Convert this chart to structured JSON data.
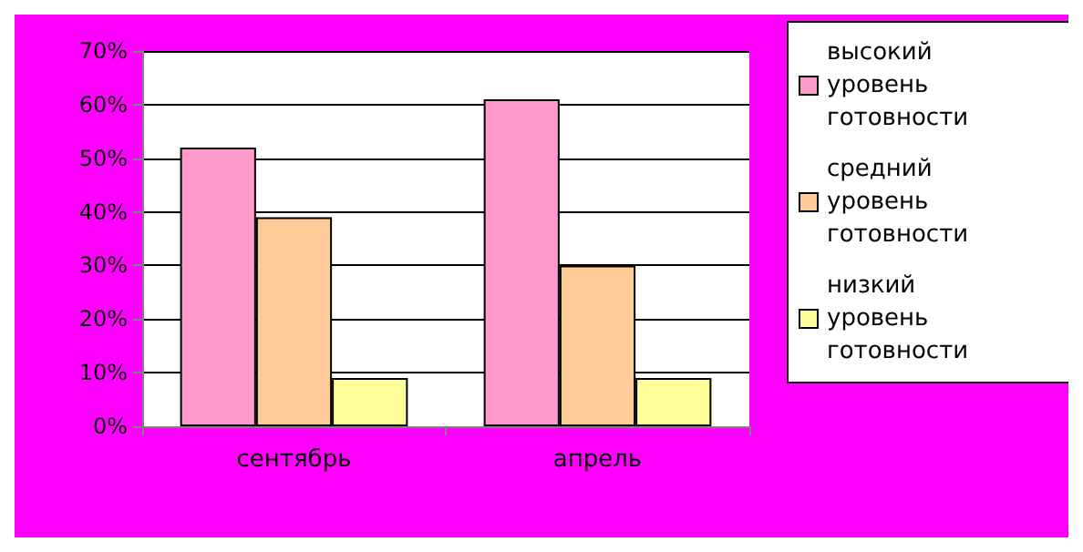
{
  "chart_data": {
    "type": "bar",
    "categories": [
      "сентябрь",
      "апрель"
    ],
    "series": [
      {
        "name": "высокий уровень готовности",
        "color": "#ff99cc",
        "values": [
          52,
          61
        ]
      },
      {
        "name": "средний уровень готовности",
        "color": "#ffcc99",
        "values": [
          39,
          30
        ]
      },
      {
        "name": "низкий уровень готовности",
        "color": "#ffff99",
        "values": [
          9,
          9
        ]
      }
    ],
    "ylim": [
      0,
      70
    ],
    "yticks": [
      {
        "value": 0,
        "label": "0%"
      },
      {
        "value": 10,
        "label": "10%"
      },
      {
        "value": 20,
        "label": "20%"
      },
      {
        "value": 30,
        "label": "30%"
      },
      {
        "value": 40,
        "label": "40%"
      },
      {
        "value": 50,
        "label": "50%"
      },
      {
        "value": 60,
        "label": "60%"
      },
      {
        "value": 70,
        "label": "70%"
      }
    ],
    "grid": "y",
    "legend": "right"
  }
}
